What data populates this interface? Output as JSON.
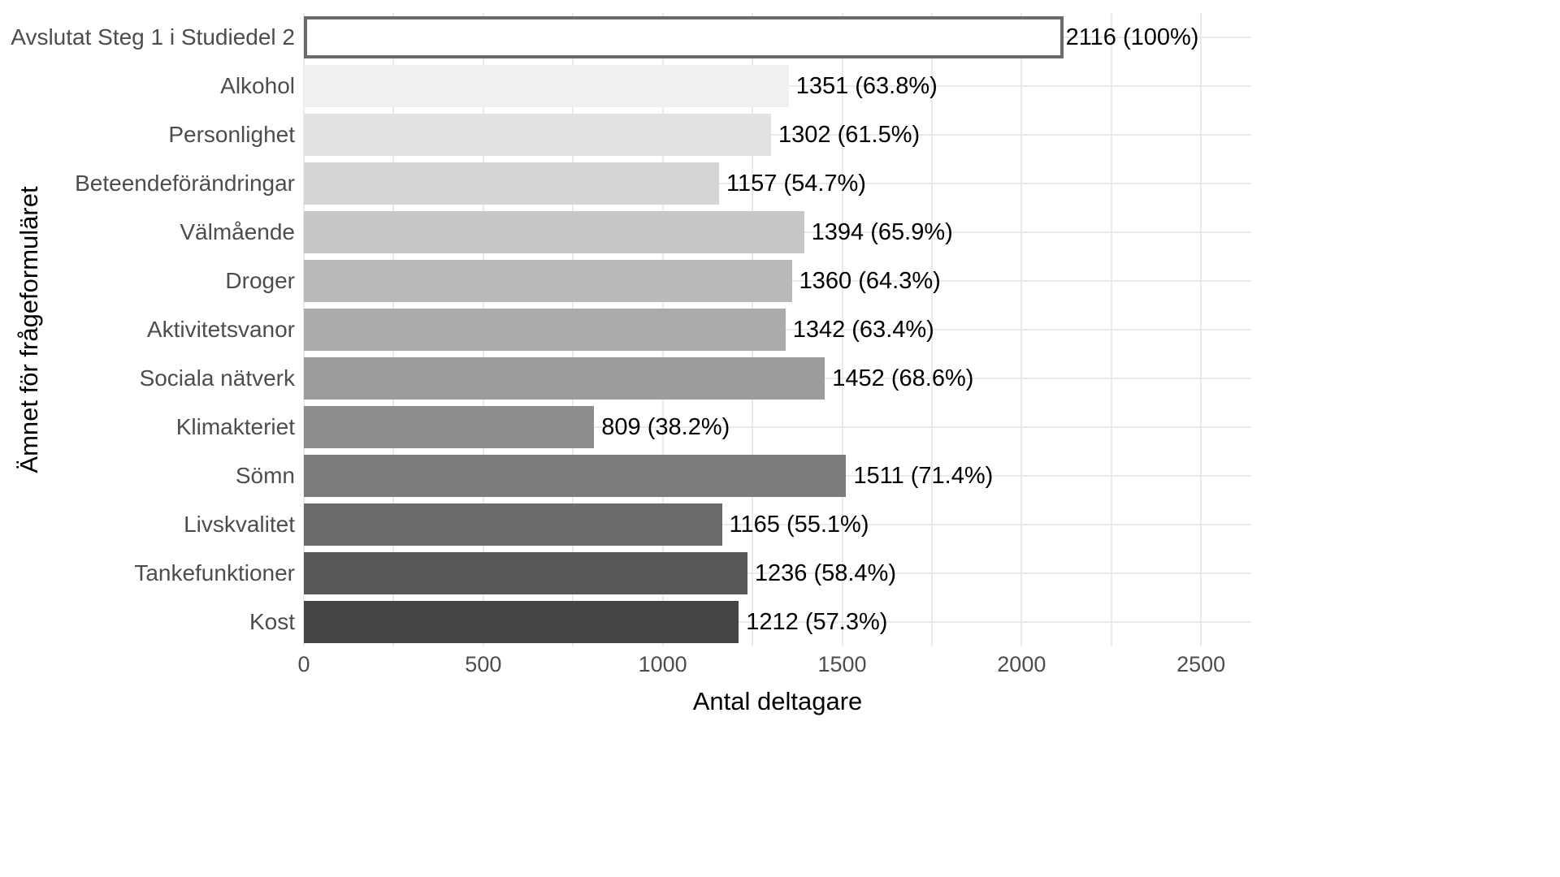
{
  "chart_data": {
    "type": "bar",
    "orientation": "horizontal",
    "xlabel": "Antal deltagare",
    "ylabel": "Ämnet för frågeformuläret",
    "xlim": [
      0,
      2640
    ],
    "x_major_ticks": [
      0,
      500,
      1000,
      1500,
      2000,
      2500
    ],
    "x_minor_ticks": [
      250,
      750,
      1250,
      1750,
      2250
    ],
    "x_tick_labels": [
      "0",
      "500",
      "1000",
      "1500",
      "2000",
      "2500"
    ],
    "grid": true,
    "legend_position": "none",
    "categories": [
      "Avslutat Steg 1 i Studiedel 2",
      "Alkohol",
      "Personlighet",
      "Beteendeförändringar",
      "Välmående",
      "Droger",
      "Aktivitetsvanor",
      "Sociala nätverk",
      "Klimakteriet",
      "Sömn",
      "Livskvalitet",
      "Tankefunktioner",
      "Kost"
    ],
    "values": [
      2116,
      1351,
      1302,
      1157,
      1394,
      1360,
      1342,
      1452,
      809,
      1511,
      1165,
      1236,
      1212
    ],
    "value_labels": [
      "2116 (100%)",
      "1351 (63.8%)",
      "1302 (61.5%)",
      "1157 (54.7%)",
      "1394 (65.9%)",
      "1360 (64.3%)",
      "1342 (63.4%)",
      "1452 (68.6%)",
      "809 (38.2%)",
      "1511 (71.4%)",
      "1165 (55.1%)",
      "1236 (58.4%)",
      "1212 (57.3%)"
    ],
    "bar_colors": [
      "#FFFFFF",
      "#F0F0F0",
      "#E2E2E2",
      "#D5D5D5",
      "#C7C7C7",
      "#B9B9B9",
      "#ABABAB",
      "#9C9C9C",
      "#8D8D8D",
      "#7C7C7C",
      "#6B6B6B",
      "#585858",
      "#454545"
    ],
    "highlight_bar": {
      "category": "Avslutat Steg 1 i Studiedel 2",
      "fill": "#FFFFFF",
      "border": "#6B6B6B"
    }
  },
  "colors": {
    "background": "#FFFFFF",
    "grid": "#EAEAEA",
    "axis_text": "#4D4D4D",
    "axis_title": "#000000",
    "value_label": "#000000"
  }
}
